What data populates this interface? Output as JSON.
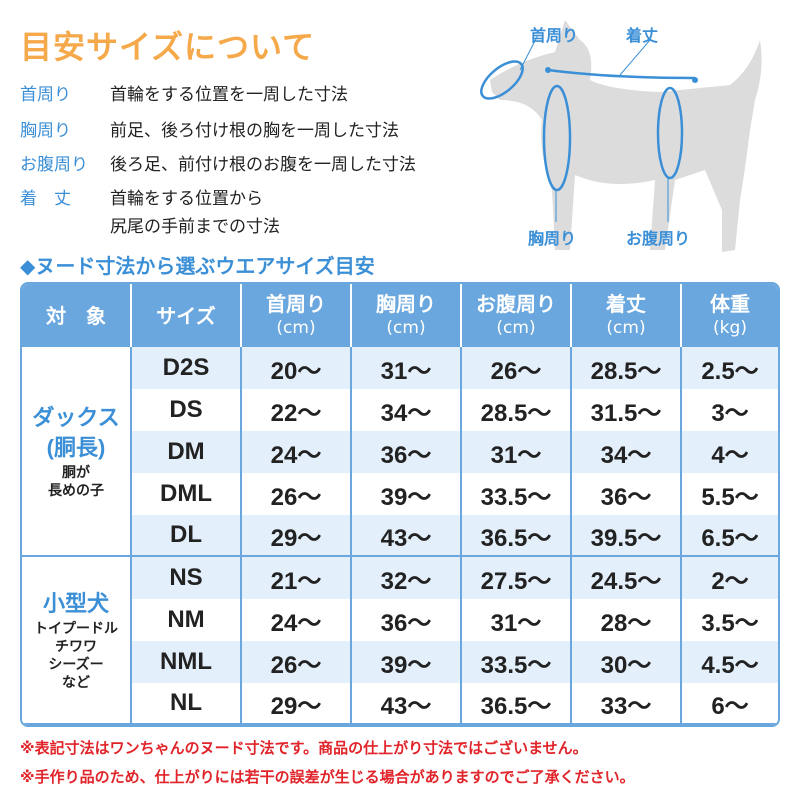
{
  "title": "目安サイズについて",
  "definitions": [
    {
      "term": "首周り",
      "desc": "首輪をする位置を一周した寸法"
    },
    {
      "term": "胸周り",
      "desc": "前足、後ろ付け根の胸を一周した寸法"
    },
    {
      "term": "お腹周り",
      "desc": "後ろ足、前付け根のお腹を一周した寸法"
    },
    {
      "term": "着　丈",
      "desc": "首輪をする位置から",
      "desc2": "尻尾の手前までの寸法"
    }
  ],
  "diagram_labels": {
    "neck": "首周り",
    "length": "着丈",
    "chest": "胸周り",
    "belly": "お腹周り"
  },
  "subtitle": "◆ヌード寸法から選ぶウエアサイズ目安",
  "table": {
    "headers": [
      {
        "t": "対　象",
        "u": ""
      },
      {
        "t": "サイズ",
        "u": ""
      },
      {
        "t": "首周り",
        "u": "(cm)"
      },
      {
        "t": "胸周り",
        "u": "(cm)"
      },
      {
        "t": "お腹周り",
        "u": "(cm)"
      },
      {
        "t": "着丈",
        "u": "(cm)"
      },
      {
        "t": "体重",
        "u": "(kg)"
      }
    ],
    "groups": [
      {
        "name": "ダックス",
        "name2": "(胴長)",
        "desc": "胴が",
        "desc2": "長めの子",
        "rows": [
          [
            "D2S",
            "20〜",
            "31〜",
            "26〜",
            "28.5〜",
            "2.5〜"
          ],
          [
            "DS",
            "22〜",
            "34〜",
            "28.5〜",
            "31.5〜",
            "3〜"
          ],
          [
            "DM",
            "24〜",
            "36〜",
            "31〜",
            "34〜",
            "4〜"
          ],
          [
            "DML",
            "26〜",
            "39〜",
            "33.5〜",
            "36〜",
            "5.5〜"
          ],
          [
            "DL",
            "29〜",
            "43〜",
            "36.5〜",
            "39.5〜",
            "6.5〜"
          ]
        ]
      },
      {
        "name": "小型犬",
        "desc": "トイプードル",
        "desc2": "チワワ",
        "desc3": "シーズー",
        "desc4": "など",
        "rows": [
          [
            "NS",
            "21〜",
            "32〜",
            "27.5〜",
            "24.5〜",
            "2〜"
          ],
          [
            "NM",
            "24〜",
            "36〜",
            "31〜",
            "28〜",
            "3.5〜"
          ],
          [
            "NML",
            "26〜",
            "39〜",
            "33.5〜",
            "30〜",
            "4.5〜"
          ],
          [
            "NL",
            "29〜",
            "43〜",
            "36.5〜",
            "33〜",
            "6〜"
          ]
        ]
      }
    ]
  },
  "notes": [
    "※表記寸法はワンちゃんのヌード寸法です。商品の仕上がり寸法ではございません。",
    "※手作り品のため、仕上がりには若干の誤差が生じる場合がありますのでご了承ください。"
  ],
  "colors": {
    "title": "#f5a94a",
    "accent": "#3b8fd6",
    "header": "#6aa7de",
    "row_alt": "#e3effa",
    "note": "#e0242a",
    "dog": "#dcdcdc"
  }
}
